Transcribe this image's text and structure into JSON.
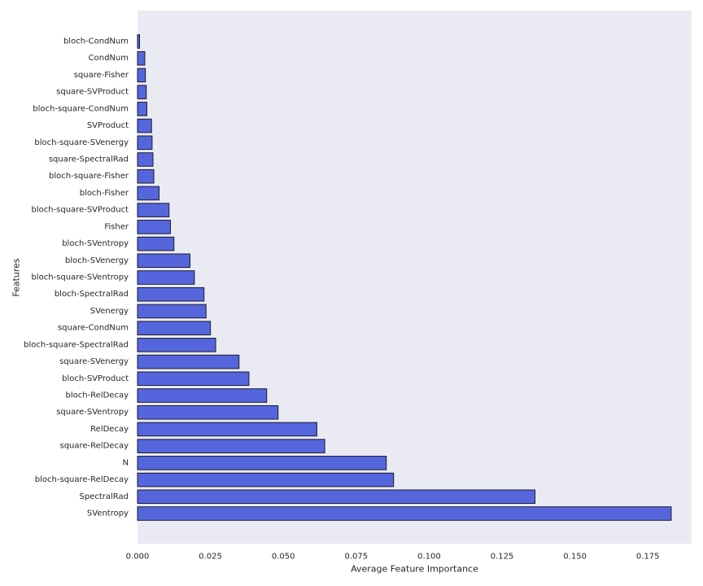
{
  "chart_data": {
    "type": "bar",
    "orientation": "horizontal",
    "xlabel": "Average Feature Importance",
    "ylabel": "Features",
    "xlim": [
      0,
      0.19
    ],
    "x_ticks": [
      "0.000",
      "0.025",
      "0.050",
      "0.075",
      "0.100",
      "0.125",
      "0.150",
      "0.175"
    ],
    "grid": false,
    "bar_color": "#5566dd",
    "bar_edge_color": "#1a1a2e",
    "background_color": "#eaeaf2",
    "categories": [
      "bloch-CondNum",
      "CondNum",
      "square-Fisher",
      "square-SVProduct",
      "bloch-square-CondNum",
      "SVProduct",
      "bloch-square-SVenergy",
      "square-SpectralRad",
      "bloch-square-Fisher",
      "bloch-Fisher",
      "bloch-square-SVProduct",
      "Fisher",
      "bloch-SVentropy",
      "bloch-SVenergy",
      "bloch-square-SVentropy",
      "bloch-SpectralRad",
      "SVenergy",
      "square-CondNum",
      "bloch-square-SpectralRad",
      "square-SVenergy",
      "bloch-SVProduct",
      "bloch-RelDecay",
      "square-SVentropy",
      "RelDecay",
      "square-RelDecay",
      "N",
      "bloch-square-RelDecay",
      "SpectralRad",
      "SVentropy"
    ],
    "values": [
      0.0007,
      0.0025,
      0.0027,
      0.003,
      0.0032,
      0.0048,
      0.005,
      0.0053,
      0.0056,
      0.0074,
      0.0108,
      0.0113,
      0.0125,
      0.018,
      0.0195,
      0.0228,
      0.0235,
      0.025,
      0.0268,
      0.0348,
      0.0382,
      0.0443,
      0.0482,
      0.0615,
      0.0642,
      0.0853,
      0.0878,
      0.1363,
      0.183
    ]
  }
}
